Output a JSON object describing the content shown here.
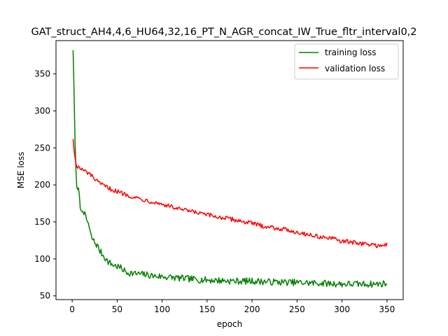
{
  "chart_data": {
    "type": "line",
    "title": "GAT_struct_AH4,4,6_HU64,32,16_PT_N_AGR_concat_IW_True_fltr_interval0,2",
    "xlabel": "epoch",
    "ylabel": "MSE loss",
    "xlim": [
      -18,
      368
    ],
    "ylim": [
      45,
      395
    ],
    "xticks": [
      0,
      50,
      100,
      150,
      200,
      250,
      300,
      350
    ],
    "yticks": [
      50,
      100,
      150,
      200,
      250,
      300,
      350
    ],
    "grid": false,
    "legend_position": "upper right",
    "series": [
      {
        "name": "training loss",
        "color": "#008000",
        "keypoints": [
          [
            1,
            382
          ],
          [
            2,
            330
          ],
          [
            3,
            268
          ],
          [
            4,
            225
          ],
          [
            5,
            200
          ],
          [
            6,
            190
          ],
          [
            7,
            195
          ],
          [
            8,
            182
          ],
          [
            10,
            162
          ],
          [
            12,
            168
          ],
          [
            15,
            155
          ],
          [
            18,
            148
          ],
          [
            20,
            135
          ],
          [
            22,
            128
          ],
          [
            25,
            122
          ],
          [
            28,
            118
          ],
          [
            30,
            112
          ],
          [
            35,
            104
          ],
          [
            40,
            96
          ],
          [
            45,
            92
          ],
          [
            50,
            90
          ],
          [
            55,
            87
          ],
          [
            60,
            82
          ],
          [
            70,
            80
          ],
          [
            80,
            79
          ],
          [
            90,
            77
          ],
          [
            100,
            76
          ],
          [
            120,
            74
          ],
          [
            140,
            72
          ],
          [
            160,
            71
          ],
          [
            180,
            70
          ],
          [
            200,
            70
          ],
          [
            220,
            69
          ],
          [
            250,
            68
          ],
          [
            280,
            67
          ],
          [
            300,
            66
          ],
          [
            320,
            66
          ],
          [
            340,
            66
          ],
          [
            350,
            67
          ]
        ],
        "noise": 4.5
      },
      {
        "name": "validation loss",
        "color": "#ff0000",
        "keypoints": [
          [
            1,
            262
          ],
          [
            2,
            248
          ],
          [
            3,
            238
          ],
          [
            4,
            230
          ],
          [
            5,
            226
          ],
          [
            8,
            223
          ],
          [
            10,
            221
          ],
          [
            15,
            218
          ],
          [
            20,
            214
          ],
          [
            25,
            208
          ],
          [
            30,
            202
          ],
          [
            35,
            199
          ],
          [
            40,
            196
          ],
          [
            50,
            191
          ],
          [
            60,
            187
          ],
          [
            70,
            183
          ],
          [
            80,
            180
          ],
          [
            90,
            177
          ],
          [
            100,
            174
          ],
          [
            120,
            167
          ],
          [
            140,
            162
          ],
          [
            160,
            157
          ],
          [
            170,
            155
          ],
          [
            180,
            153
          ],
          [
            200,
            148
          ],
          [
            210,
            145
          ],
          [
            220,
            143
          ],
          [
            240,
            139
          ],
          [
            250,
            136
          ],
          [
            270,
            131
          ],
          [
            290,
            127
          ],
          [
            300,
            124
          ],
          [
            320,
            121
          ],
          [
            340,
            118
          ],
          [
            350,
            119
          ]
        ],
        "noise": 3.0
      }
    ]
  }
}
